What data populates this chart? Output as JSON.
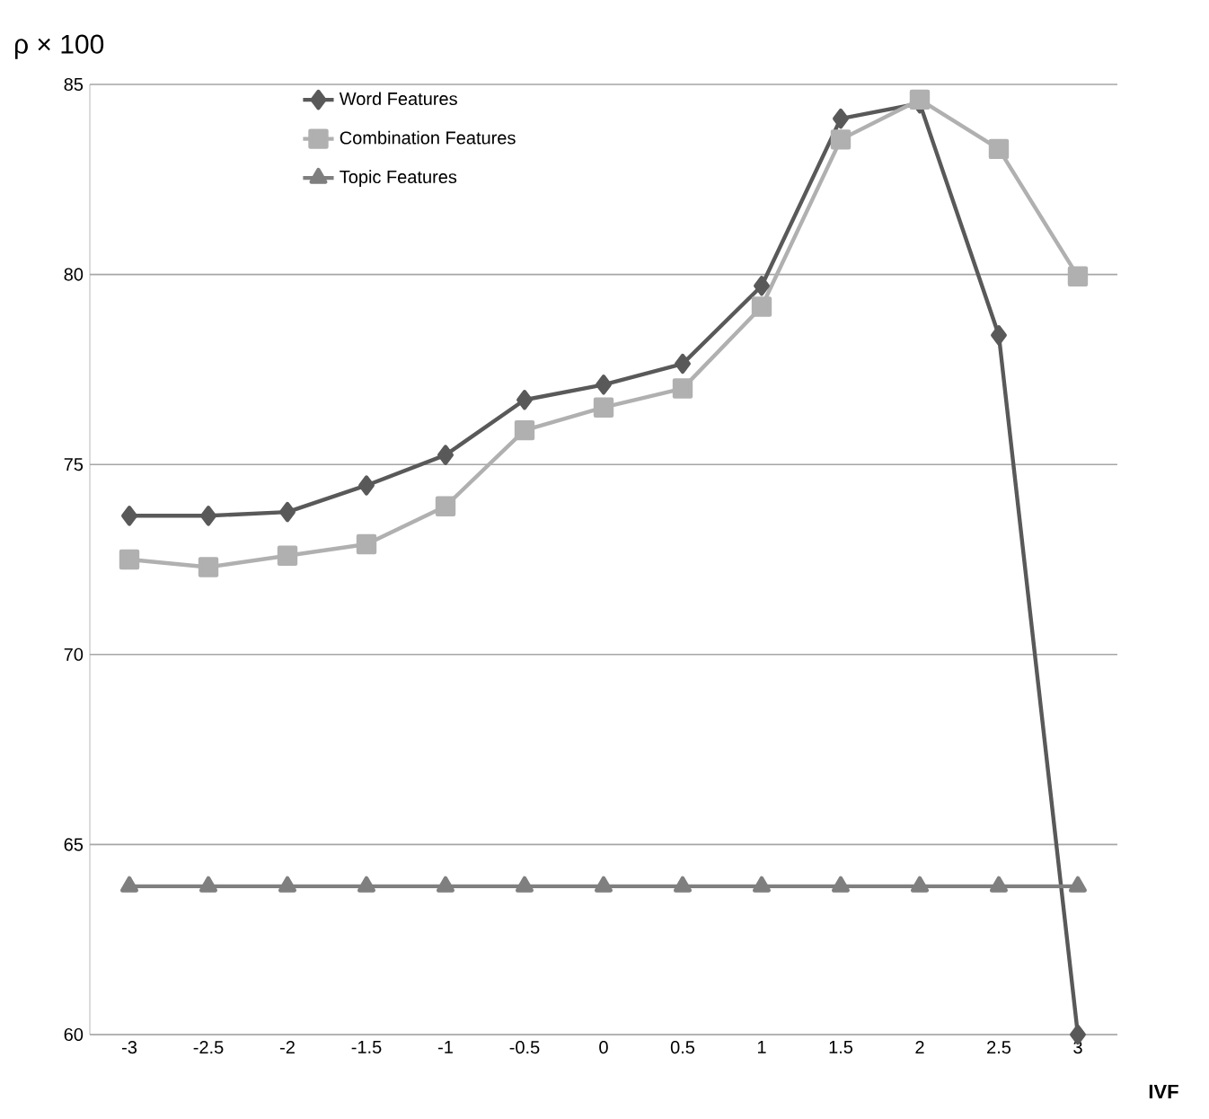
{
  "chart_data": {
    "type": "line",
    "xlabel": "IVF",
    "ylabel": "ρ × 100",
    "x": [
      -3,
      -2.5,
      -2,
      -1.5,
      -1,
      -0.5,
      0,
      0.5,
      1,
      1.5,
      2,
      2.5,
      3
    ],
    "series": [
      {
        "name": "Word Features",
        "color": "#595959",
        "marker": "diamond",
        "values": [
          73.65,
          73.65,
          73.75,
          74.45,
          75.25,
          76.7,
          77.1,
          77.65,
          79.7,
          84.1,
          84.5,
          78.4,
          60
        ]
      },
      {
        "name": "Combination Features",
        "color": "#b0b0b0",
        "marker": "square",
        "values": [
          72.5,
          72.3,
          72.6,
          72.9,
          73.9,
          75.9,
          76.5,
          77.0,
          79.15,
          83.55,
          84.6,
          83.3,
          79.95
        ]
      },
      {
        "name": "Topic Features",
        "color": "#7f7f7f",
        "marker": "triangle",
        "values": [
          63.9,
          63.9,
          63.9,
          63.9,
          63.9,
          63.9,
          63.9,
          63.9,
          63.9,
          63.9,
          63.9,
          63.9,
          63.9
        ]
      }
    ],
    "xlim": [
      -3.25,
      3.25
    ],
    "ylim": [
      60,
      85
    ],
    "xticks": [
      -3,
      -2.5,
      -2,
      -1.5,
      -1,
      -0.5,
      0,
      0.5,
      1,
      1.5,
      2,
      2.5,
      3
    ],
    "yticks": [
      60,
      65,
      70,
      75,
      80,
      85
    ],
    "grid": "y",
    "legend": "top left",
    "line_style": "solid"
  }
}
